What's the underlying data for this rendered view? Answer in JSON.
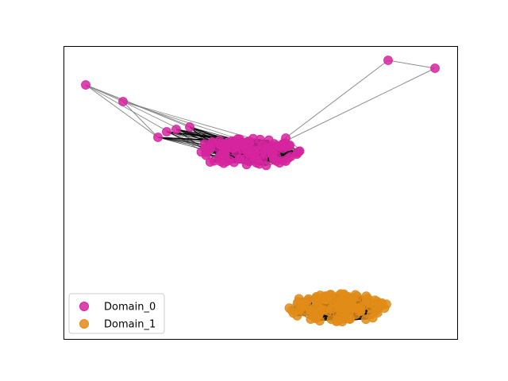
{
  "graph": {
    "node_colors": {
      "Domain_0": "#d6249f",
      "Domain_1": "#e08c18"
    },
    "edge_color": "#808080",
    "legend": {
      "placement": "lower-left",
      "entries": [
        {
          "label": "Domain_0",
          "color": "#d6249f"
        },
        {
          "label": "Domain_1",
          "color": "#e08c18"
        }
      ]
    }
  }
}
